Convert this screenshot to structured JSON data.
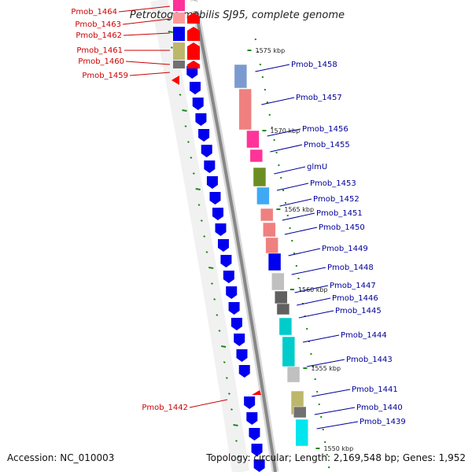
{
  "title": "Petrotoga mobilis SJ95, complete genome",
  "footer": {
    "accession": "Accession: NC_010003",
    "summary": "Topology: circular; Length: 2,169,548 bp; Genes: 1,952"
  },
  "colors": {
    "backbone": "#888888",
    "forward_strand": "#0000ee",
    "reverse_strand": "#ff0000",
    "tick": "#1a8a1a",
    "label_left": "#cc0000",
    "label_right": "#000099"
  },
  "ticks": [
    "1575 kbp",
    "1570 kbp",
    "1565 kbp",
    "1560 kbp",
    "1555 kbp",
    "1550 kbp"
  ],
  "genes_left": [
    {
      "name": "Pmob_1464"
    },
    {
      "name": "Pmob_1463"
    },
    {
      "name": "Pmob_1462"
    },
    {
      "name": "Pmob_1461"
    },
    {
      "name": "Pmob_1460"
    },
    {
      "name": "Pmob_1459"
    },
    {
      "name": "Pmob_1442"
    }
  ],
  "genes_right": [
    {
      "name": "Pmob_1458",
      "color": "#7b9bd0"
    },
    {
      "name": "Pmob_1457",
      "color": "#f08080"
    },
    {
      "name": "Pmob_1456",
      "color": "#ff3399"
    },
    {
      "name": "Pmob_1455",
      "color": "#ff3399"
    },
    {
      "name": "glmU",
      "color": "#6b8e23"
    },
    {
      "name": "Pmob_1453",
      "color": "#3fa9f5"
    },
    {
      "name": "Pmob_1452",
      "color": "#f08080"
    },
    {
      "name": "Pmob_1451",
      "color": "#f08080"
    },
    {
      "name": "Pmob_1450",
      "color": "#f08080"
    },
    {
      "name": "Pmob_1449",
      "color": "#0000ee"
    },
    {
      "name": "Pmob_1448",
      "color": "#c0c0c0"
    },
    {
      "name": "Pmob_1447",
      "color": "#606060"
    },
    {
      "name": "Pmob_1446",
      "color": "#606060"
    },
    {
      "name": "Pmob_1445",
      "color": "#00cccc"
    },
    {
      "name": "Pmob_1444",
      "color": "#00cccc"
    },
    {
      "name": "Pmob_1443",
      "color": "#c0c0c0"
    },
    {
      "name": "Pmob_1441",
      "color": "#bdb76b"
    },
    {
      "name": "Pmob_1440",
      "color": "#707070"
    },
    {
      "name": "Pmob_1439",
      "color": "#00e5ee"
    }
  ]
}
